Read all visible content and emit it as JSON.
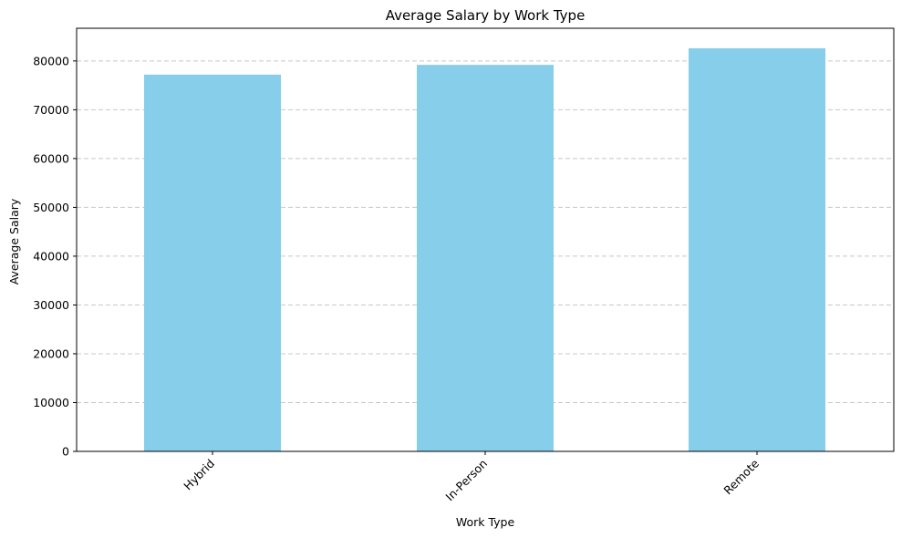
{
  "chart_data": {
    "type": "bar",
    "title": "Average Salary by Work Type",
    "xlabel": "Work Type",
    "ylabel": "Average Salary",
    "categories": [
      "Hybrid",
      "In-Person",
      "Remote"
    ],
    "values": [
      77200,
      79200,
      82600
    ],
    "ylim": [
      0,
      86700
    ],
    "yticks": [
      0,
      10000,
      20000,
      30000,
      40000,
      50000,
      60000,
      70000,
      80000
    ],
    "ytick_labels": [
      "0",
      "10000",
      "20000",
      "30000",
      "40000",
      "50000",
      "60000",
      "70000",
      "80000"
    ],
    "x_tick_rotation_deg": 45,
    "grid": "y-axis, dashed",
    "legend": "none",
    "bar_color": "#87CEEB",
    "grid_color": "#c8c8c8"
  }
}
